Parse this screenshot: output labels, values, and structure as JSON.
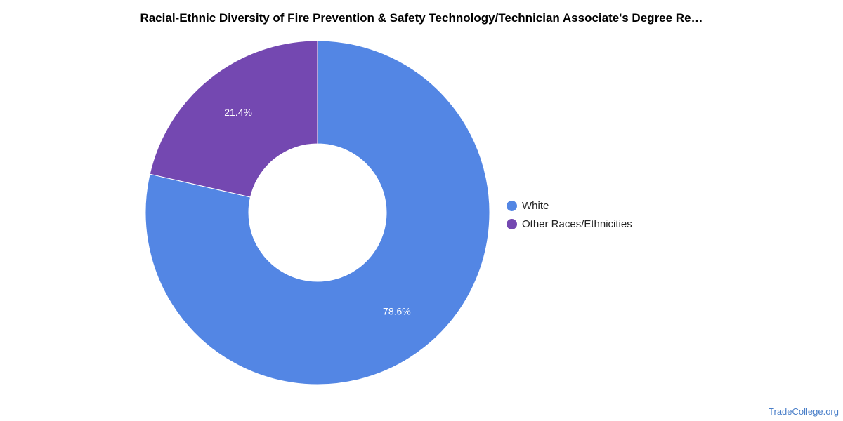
{
  "chart_data": {
    "type": "pie",
    "title": "Racial-Ethnic Diversity of Fire Prevention & Safety Technology/Technician Associate's Degree Re…",
    "hole": true,
    "legend_position": "right",
    "slices": [
      {
        "name": "White",
        "value": 78.6,
        "label": "78.6%",
        "color": "#5386e4"
      },
      {
        "name": "Other Races/Ethnicities",
        "value": 21.4,
        "label": "21.4%",
        "color": "#7448b1"
      }
    ]
  },
  "watermark": "TradeCollege.org"
}
